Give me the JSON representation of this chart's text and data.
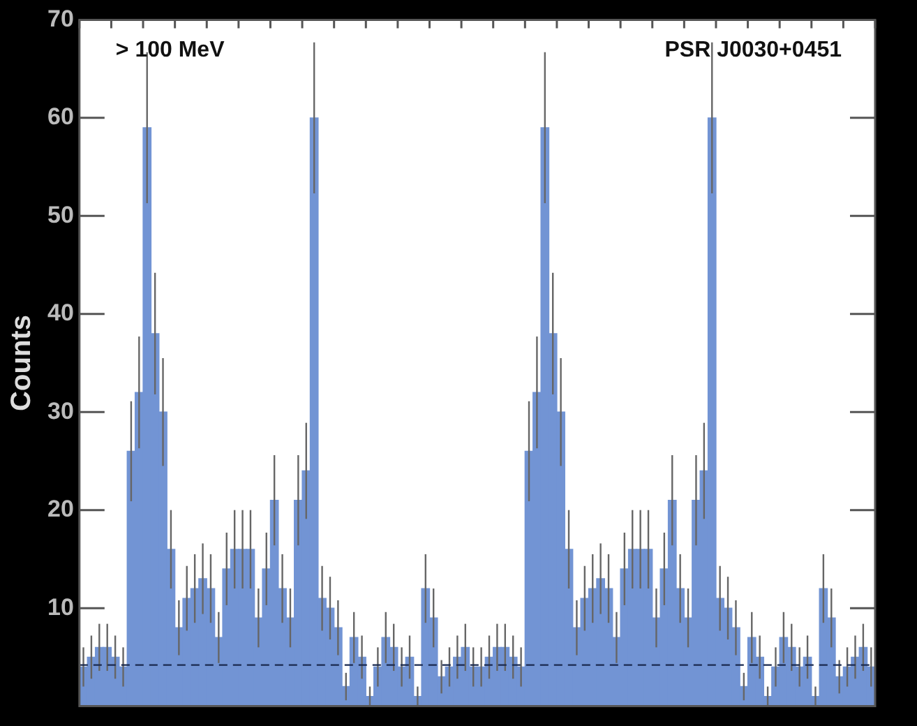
{
  "chart_data": {
    "type": "bar",
    "ylabel": "Counts",
    "annotations": [
      "> 100 MeV",
      "PSR J0030+0451"
    ],
    "categories": [
      null,
      null,
      null,
      null,
      null,
      null,
      null,
      null,
      null,
      null,
      null,
      null,
      null,
      null,
      null,
      null,
      null,
      null,
      null,
      null,
      null,
      null,
      null,
      null,
      null,
      null,
      null,
      null,
      null,
      null,
      null,
      null,
      null,
      null,
      null,
      null,
      null,
      null,
      null,
      null,
      null,
      null,
      null,
      null,
      null,
      null,
      null,
      null,
      null,
      null,
      null,
      null,
      null,
      null,
      null,
      null,
      null,
      null,
      null,
      null,
      null,
      null,
      null,
      null,
      null,
      null,
      null,
      null,
      null,
      null,
      null,
      null,
      null,
      null,
      null,
      null,
      null,
      null,
      null,
      null,
      null,
      null,
      null,
      null,
      null,
      null,
      null,
      null,
      null,
      null,
      null,
      null,
      null,
      null,
      null,
      null,
      null,
      null,
      null,
      null
    ],
    "values": [
      4,
      5,
      6,
      6,
      5,
      4,
      26,
      32,
      59,
      38,
      30,
      16,
      8,
      11,
      12,
      13,
      12,
      7,
      14,
      16,
      16,
      16,
      9,
      14,
      21,
      12,
      9,
      21,
      24,
      60,
      11,
      10,
      8,
      2,
      7,
      5,
      1,
      4,
      7,
      6,
      4,
      5,
      1,
      12,
      9,
      3,
      4,
      5,
      6,
      4,
      4,
      5,
      6,
      6,
      5,
      4,
      26,
      32,
      59,
      38,
      30,
      16,
      8,
      11,
      12,
      13,
      12,
      7,
      14,
      16,
      16,
      16,
      9,
      14,
      21,
      12,
      9,
      21,
      24,
      60,
      11,
      10,
      8,
      2,
      7,
      5,
      1,
      4,
      7,
      6,
      4,
      5,
      1,
      12,
      9,
      3,
      4,
      5,
      6,
      4
    ],
    "errors": [
      2,
      2.2,
      2.4,
      2.4,
      2.2,
      2,
      5.1,
      5.7,
      7.7,
      6.2,
      5.5,
      4,
      2.8,
      3.3,
      3.5,
      3.6,
      3.5,
      2.6,
      3.7,
      4,
      4,
      4,
      3,
      3.7,
      4.6,
      3.5,
      3,
      4.6,
      4.9,
      7.7,
      3.3,
      3.2,
      2.8,
      1.4,
      2.6,
      2.2,
      1,
      2,
      2.6,
      2.4,
      2,
      2.2,
      1,
      3.5,
      3,
      1.7,
      2,
      2.2,
      2.4,
      2,
      2,
      2.2,
      2.4,
      2.4,
      2.2,
      2,
      5.1,
      5.7,
      7.7,
      6.2,
      5.5,
      4,
      2.8,
      3.3,
      3.5,
      3.6,
      3.5,
      2.6,
      3.7,
      4,
      4,
      4,
      3,
      3.7,
      4.6,
      3.5,
      3,
      4.6,
      4.9,
      7.7,
      3.3,
      3.2,
      2.8,
      1.4,
      2.6,
      2.2,
      1,
      2,
      2.6,
      2.4,
      2,
      2.2,
      1,
      3.5,
      3,
      1.7,
      2,
      2.2,
      2.4,
      2
    ],
    "color": "#7294d4",
    "ylim": [
      0,
      70
    ],
    "yticks": [
      10,
      20,
      30,
      40,
      50,
      60,
      70
    ],
    "tick_labels": "y",
    "ref_lines": [
      {
        "axis": "y",
        "value": 4.2,
        "line_style": "dashed",
        "color": "#1a2a50"
      }
    ],
    "grid": false,
    "legend": false
  }
}
